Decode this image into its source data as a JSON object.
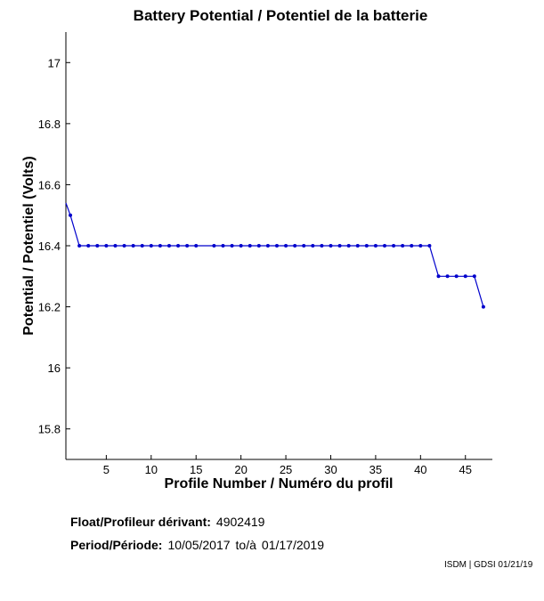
{
  "chart_data": {
    "type": "line",
    "title": "Battery Potential / Potentiel de la batterie",
    "xlabel": "Profile Number / Numéro du profil",
    "ylabel": "Potential / Potentiel (Volts)",
    "xlim": [
      0.5,
      48
    ],
    "ylim": [
      15.7,
      17.1
    ],
    "xticks": [
      5,
      10,
      15,
      20,
      25,
      30,
      35,
      40,
      45
    ],
    "yticks": [
      15.8,
      16,
      16.2,
      16.4,
      16.6,
      16.8,
      17
    ],
    "ytick_labels": [
      "15.8",
      "16",
      "16.2",
      "16.4",
      "16.6",
      "16.8",
      "17"
    ],
    "grid": false,
    "color": "#0000cc",
    "x": [
      1,
      2,
      3,
      4,
      5,
      6,
      7,
      8,
      9,
      10,
      11,
      12,
      13,
      14,
      15,
      17,
      18,
      19,
      20,
      21,
      22,
      23,
      24,
      25,
      26,
      27,
      28,
      29,
      30,
      31,
      32,
      33,
      34,
      35,
      36,
      37,
      38,
      39,
      40,
      41,
      42,
      43,
      44,
      45,
      46,
      47
    ],
    "y": [
      16.5,
      16.4,
      16.4,
      16.4,
      16.4,
      16.4,
      16.4,
      16.4,
      16.4,
      16.4,
      16.4,
      16.4,
      16.4,
      16.4,
      16.4,
      16.4,
      16.4,
      16.4,
      16.4,
      16.4,
      16.4,
      16.4,
      16.4,
      16.4,
      16.4,
      16.4,
      16.4,
      16.4,
      16.4,
      16.4,
      16.4,
      16.4,
      16.4,
      16.4,
      16.4,
      16.4,
      16.4,
      16.4,
      16.4,
      16.4,
      16.3,
      16.3,
      16.3,
      16.3,
      16.3,
      16.2
    ],
    "line_start": [
      0.5,
      16.54
    ]
  },
  "info": {
    "float_label": "Float/Profileur dérivant:",
    "float_value": "4902419",
    "period_label": "Period/Période:",
    "period_start": "10/05/2017",
    "period_sep": "to/à",
    "period_end": "01/17/2019"
  },
  "credit": "ISDM | GDSI 01/21/19"
}
